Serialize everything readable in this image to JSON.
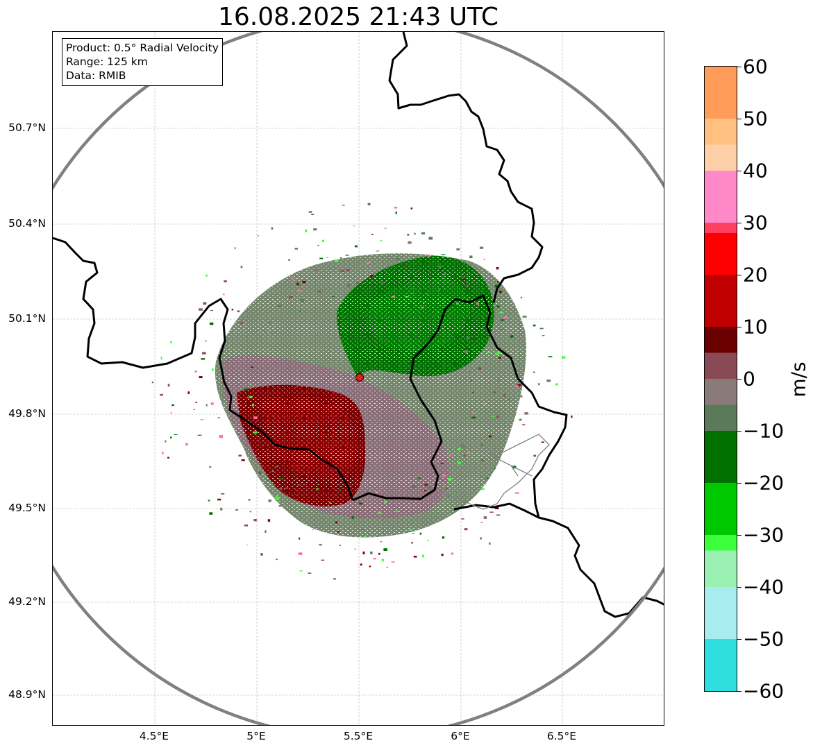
{
  "title": "16.08.2025 21:43 UTC",
  "info_box": {
    "product": "Product: 0.5° Radial Velocity",
    "range": "Range: 125 km",
    "data": "Data: RMIB"
  },
  "lat_labels": [
    "50.7°N",
    "50.4°N",
    "50.1°N",
    "49.8°N",
    "49.5°N",
    "49.2°N",
    "48.9°N"
  ],
  "lon_labels": [
    "4.5°E",
    "5°E",
    "5.5°E",
    "6°E",
    "6.5°E"
  ],
  "colorbar": {
    "unit": "m/s",
    "min": -60,
    "max": 60,
    "tick_labels": [
      "60",
      "50",
      "40",
      "30",
      "20",
      "10",
      "0",
      "−10",
      "−20",
      "−30",
      "−40",
      "−50",
      "−60"
    ],
    "colors": {
      "from_-60": "#1f77c4",
      "-50": "#2fdede",
      "-40": "#a8ecf0",
      "-33": "#9af0b0",
      "-30": "#3cff3c",
      "-20": "#00c800",
      "-10": "#007000",
      "-5": "#5a7a5a",
      "0": "#8a7a7a",
      "5": "#8a4a55",
      "10": "#6a0000",
      "20": "#c00000",
      "28": "#ff0000",
      "30": "#ff4060",
      "40": "#ff88c8",
      "45": "#ffd0a8",
      "50": "#ffc080",
      "to_60": "#ff9c5a"
    }
  },
  "radar": {
    "site_marker_color": "#e02020",
    "range_ring_color": "#808080",
    "approaching_color": "#007000",
    "receding_color": "#7a0000"
  }
}
